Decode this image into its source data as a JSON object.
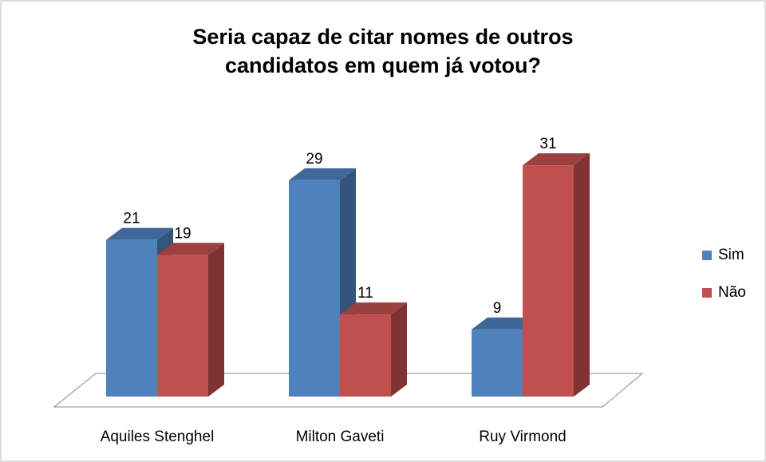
{
  "chart_data": {
    "type": "bar3d",
    "title": "Seria capaz de citar nomes de outros candidatos em quem já votou?",
    "categories": [
      "Aquiles Stenghel",
      "Milton Gaveti",
      "Ruy Virmond"
    ],
    "series": [
      {
        "name": "Sim",
        "color": "#4f81bd",
        "values": [
          21,
          29,
          9
        ]
      },
      {
        "name": "Não",
        "color": "#c0504d",
        "values": [
          19,
          11,
          31
        ]
      }
    ],
    "legend": "right"
  }
}
